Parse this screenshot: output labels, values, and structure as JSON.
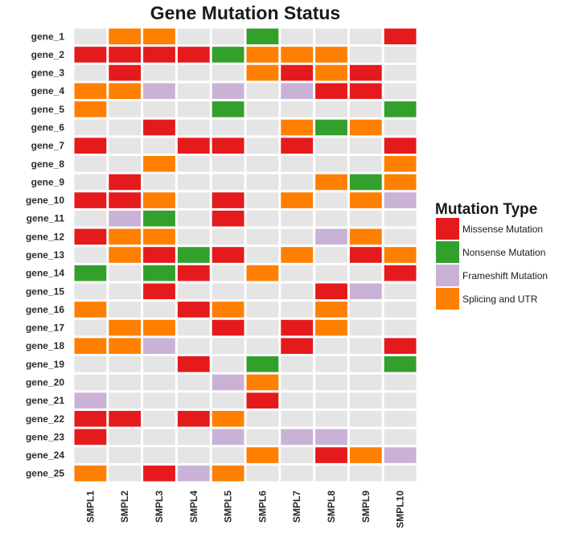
{
  "chart_data": {
    "type": "heatmap",
    "title": "Gene Mutation Status",
    "rows": [
      "gene_1",
      "gene_2",
      "gene_3",
      "gene_4",
      "gene_5",
      "gene_6",
      "gene_7",
      "gene_8",
      "gene_9",
      "gene_10",
      "gene_11",
      "gene_12",
      "gene_13",
      "gene_14",
      "gene_15",
      "gene_16",
      "gene_17",
      "gene_18",
      "gene_19",
      "gene_20",
      "gene_21",
      "gene_22",
      "gene_23",
      "gene_24",
      "gene_25"
    ],
    "columns": [
      "SMPL1",
      "SMPL2",
      "SMPL3",
      "SMPL4",
      "SMPL5",
      "SMPL6",
      "SMPL7",
      "SMPL8",
      "SMPL9",
      "SMPL10"
    ],
    "categories": {
      "M": {
        "label": "Missense Mutation",
        "color": "#E41A1C"
      },
      "N": {
        "label": "Nonsense Mutation",
        "color": "#33A02C"
      },
      "F": {
        "label": "Frameshift Mutation",
        "color": "#CAB2D6"
      },
      "S": {
        "label": "Splicing and UTR",
        "color": "#FF7F00"
      }
    },
    "none_color": "#E5E5E5",
    "legend": {
      "title": "Mutation Type",
      "order": [
        "M",
        "N",
        "F",
        "S"
      ],
      "position": "right"
    },
    "values": [
      [
        "",
        "S",
        "S",
        "",
        "",
        "N",
        "",
        "",
        "",
        "M"
      ],
      [
        "M",
        "M",
        "M",
        "M",
        "N",
        "S",
        "S",
        "S",
        "",
        ""
      ],
      [
        "",
        "M",
        "",
        "",
        "",
        "S",
        "M",
        "S",
        "M",
        ""
      ],
      [
        "S",
        "S",
        "F",
        "",
        "F",
        "",
        "F",
        "M",
        "M",
        ""
      ],
      [
        "S",
        "",
        "",
        "",
        "N",
        "",
        "",
        "",
        "",
        "N"
      ],
      [
        "",
        "",
        "M",
        "",
        "",
        "",
        "S",
        "N",
        "S",
        ""
      ],
      [
        "M",
        "",
        "",
        "M",
        "M",
        "",
        "M",
        "",
        "",
        "M"
      ],
      [
        "",
        "",
        "S",
        "",
        "",
        "",
        "",
        "",
        "",
        "S"
      ],
      [
        "",
        "M",
        "",
        "",
        "",
        "",
        "",
        "S",
        "N",
        "S"
      ],
      [
        "M",
        "M",
        "S",
        "",
        "M",
        "",
        "S",
        "",
        "S",
        "F"
      ],
      [
        "",
        "F",
        "N",
        "",
        "M",
        "",
        "",
        "",
        "",
        ""
      ],
      [
        "M",
        "S",
        "S",
        "",
        "",
        "",
        "",
        "F",
        "S",
        ""
      ],
      [
        "",
        "S",
        "M",
        "N",
        "M",
        "",
        "S",
        "",
        "M",
        "S"
      ],
      [
        "N",
        "",
        "N",
        "M",
        "",
        "S",
        "",
        "",
        "",
        "M"
      ],
      [
        "",
        "",
        "M",
        "",
        "",
        "",
        "",
        "M",
        "F",
        ""
      ],
      [
        "S",
        "",
        "",
        "M",
        "S",
        "",
        "",
        "S",
        "",
        ""
      ],
      [
        "",
        "S",
        "S",
        "",
        "M",
        "",
        "M",
        "S",
        "",
        ""
      ],
      [
        "S",
        "S",
        "F",
        "",
        "",
        "",
        "M",
        "",
        "",
        "M"
      ],
      [
        "",
        "",
        "",
        "M",
        "",
        "N",
        "",
        "",
        "",
        "N"
      ],
      [
        "",
        "",
        "",
        "",
        "F",
        "S",
        "",
        "",
        "",
        ""
      ],
      [
        "F",
        "",
        "",
        "",
        "",
        "M",
        "",
        "",
        "",
        ""
      ],
      [
        "M",
        "M",
        "",
        "M",
        "S",
        "",
        "",
        "",
        "",
        ""
      ],
      [
        "M",
        "",
        "",
        "",
        "F",
        "",
        "F",
        "F",
        "",
        ""
      ],
      [
        "",
        "",
        "",
        "",
        "",
        "S",
        "",
        "M",
        "S",
        "F"
      ],
      [
        "S",
        "",
        "M",
        "F",
        "S",
        "",
        "",
        "",
        "",
        ""
      ]
    ],
    "grid": false
  }
}
